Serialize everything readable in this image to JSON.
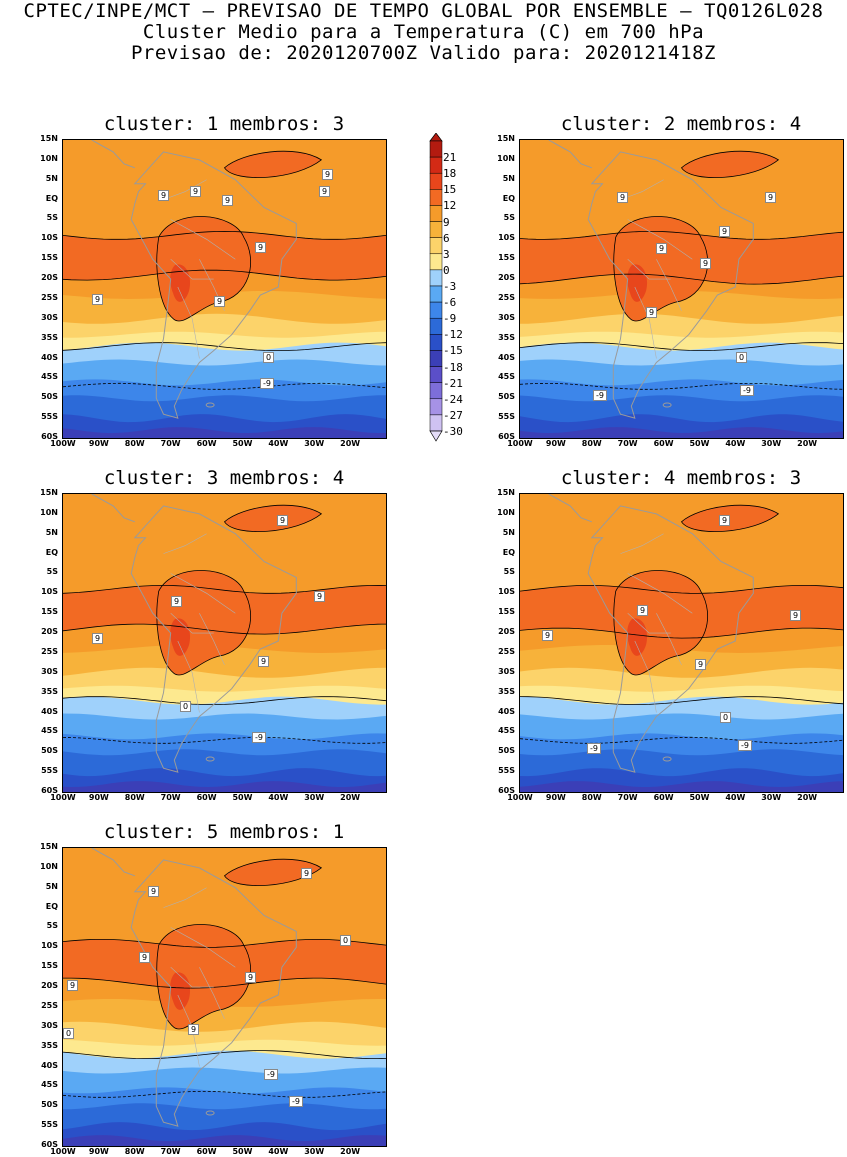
{
  "header": {
    "line1": "CPTEC/INPE/MCT – PREVISAO DE TEMPO GLOBAL POR ENSEMBLE – TQ0126L028",
    "line2": "Cluster Medio para a Temperatura (C) em 700 hPa",
    "line3": "Previsao de: 2020120700Z   Valido para: 2020121418Z"
  },
  "colorbar": {
    "levels": [
      "21",
      "18",
      "15",
      "12",
      "9",
      "6",
      "3",
      "0",
      "-3",
      "-6",
      "-9",
      "-12",
      "-15",
      "-18",
      "-21",
      "-24",
      "-27",
      "-30"
    ],
    "colors": [
      "#b31b10",
      "#d32a15",
      "#e8461c",
      "#f26a23",
      "#f59b2a",
      "#f7b23a",
      "#fcd36a",
      "#fde98f",
      "#9fd1fb",
      "#5aa9f3",
      "#3d86ea",
      "#2c6ad8",
      "#2a50c8",
      "#3b3fb7",
      "#5b4fc9",
      "#7d6ed9",
      "#a692e6",
      "#cfc2f2"
    ]
  },
  "lat_ticks": [
    "15N",
    "10N",
    "5N",
    "EQ",
    "5S",
    "10S",
    "15S",
    "20S",
    "25S",
    "30S",
    "35S",
    "40S",
    "45S",
    "50S",
    "55S",
    "60S"
  ],
  "lon_ticks": [
    "100W",
    "90W",
    "80W",
    "70W",
    "60W",
    "50W",
    "40W",
    "30W",
    "20W"
  ],
  "panels": [
    {
      "cluster_label": "cluster:",
      "cluster": "1",
      "members_label": "membros:",
      "members": "3",
      "contour_labels": [
        "9",
        "9",
        "9",
        "9",
        "9",
        "9",
        "9",
        "9",
        "0",
        "-9"
      ]
    },
    {
      "cluster_label": "cluster:",
      "cluster": "2",
      "members_label": "membros:",
      "members": "4",
      "contour_labels": [
        "9",
        "9",
        "9",
        "9",
        "9",
        "9",
        "0",
        "-9",
        "-9"
      ]
    },
    {
      "cluster_label": "cluster:",
      "cluster": "3",
      "members_label": "membros:",
      "members": "4",
      "contour_labels": [
        "9",
        "9",
        "9",
        "9",
        "9",
        "0",
        "-9"
      ]
    },
    {
      "cluster_label": "cluster:",
      "cluster": "4",
      "members_label": "membros:",
      "members": "3",
      "contour_labels": [
        "9",
        "9",
        "9",
        "9",
        "9",
        "0",
        "-9",
        "-9"
      ]
    },
    {
      "cluster_label": "cluster:",
      "cluster": "5",
      "members_label": "membros:",
      "members": "1",
      "contour_labels": [
        "9",
        "9",
        "9",
        "9",
        "9",
        "9",
        "0",
        "0",
        "-9",
        "-9"
      ]
    }
  ]
}
